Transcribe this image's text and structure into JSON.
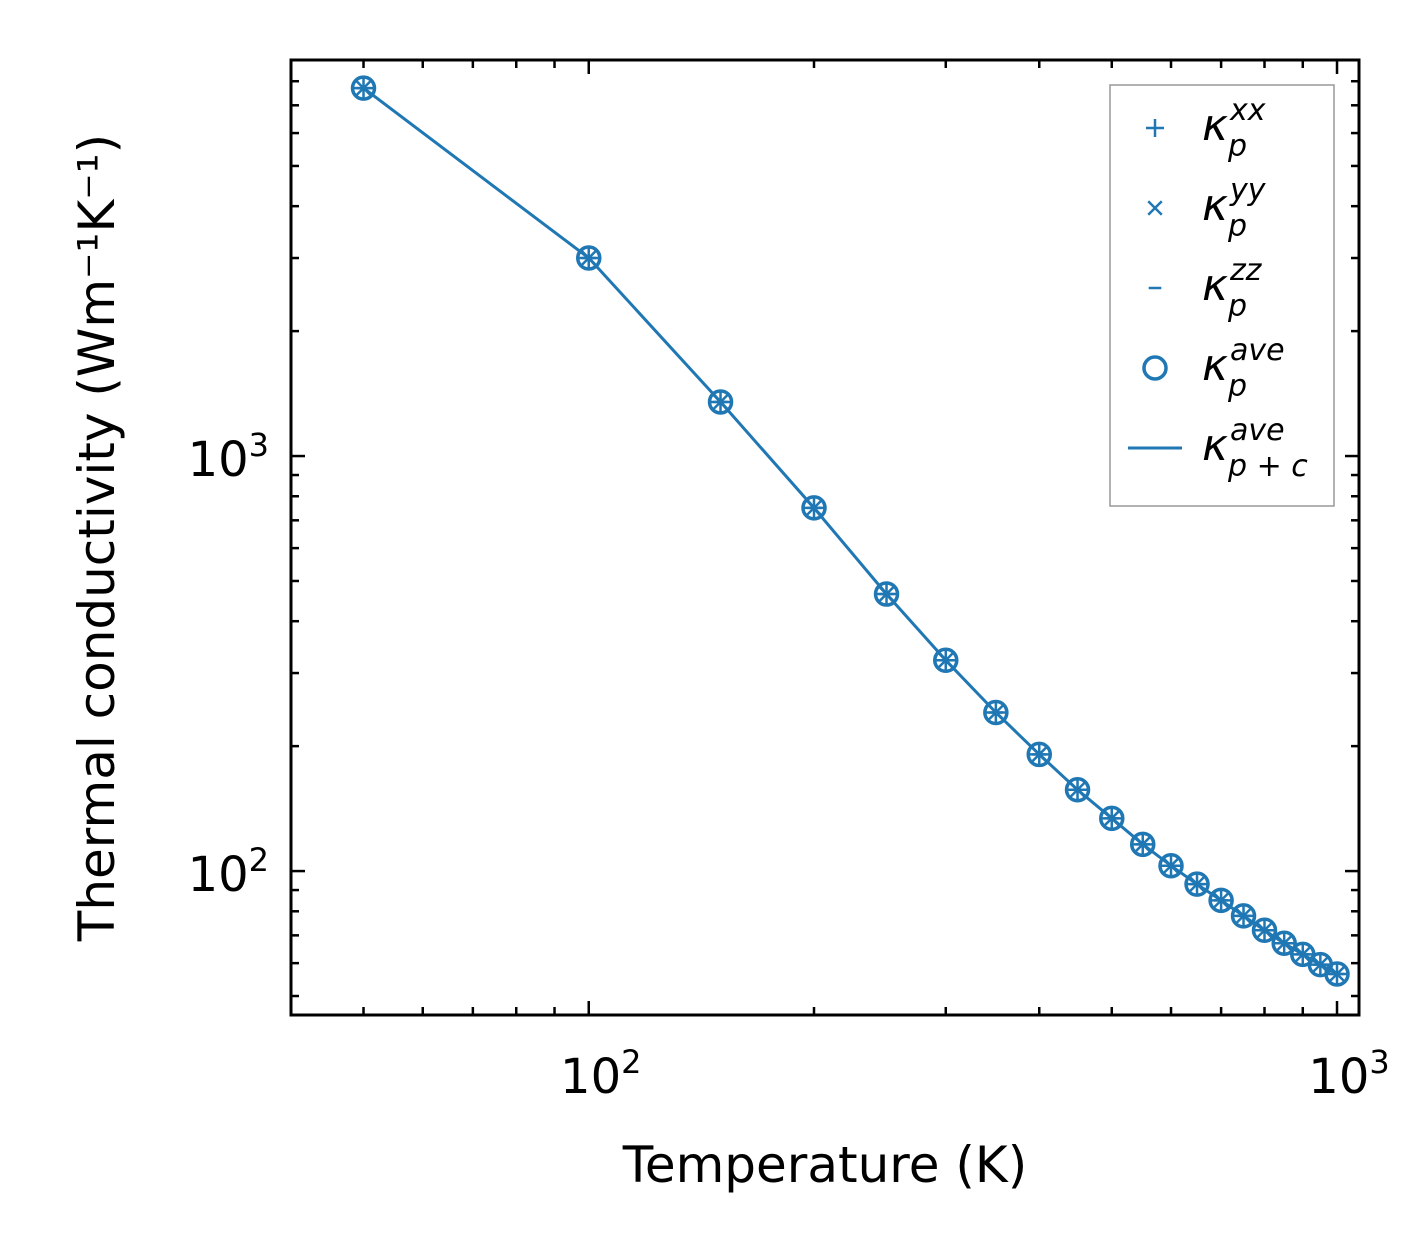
{
  "chart_data": {
    "type": "line",
    "xscale": "log",
    "yscale": "log",
    "xlim": [
      40,
      1070
    ],
    "ylim": [
      45,
      9000
    ],
    "xlabel": "Temperature (K)",
    "ylabel": "Thermal conductivity (Wm⁻¹K⁻¹)",
    "x_ticks": [
      {
        "value": 100,
        "base": "10",
        "exp": "2"
      },
      {
        "value": 1000,
        "base": "10",
        "exp": "3"
      }
    ],
    "y_ticks": [
      {
        "value": 100,
        "base": "10",
        "exp": "2"
      },
      {
        "value": 1000,
        "base": "10",
        "exp": "3"
      }
    ],
    "x": [
      50,
      100,
      150,
      200,
      250,
      300,
      350,
      400,
      450,
      500,
      550,
      600,
      650,
      700,
      750,
      800,
      850,
      900,
      950,
      1000
    ],
    "series": [
      {
        "name": "κ_p^xx",
        "marker": "plus",
        "values": [
          7700,
          3000,
          1350,
          750,
          465,
          322,
          241,
          191,
          157,
          134,
          116,
          103,
          93,
          85,
          78,
          72,
          67,
          63,
          59.5,
          56.5
        ]
      },
      {
        "name": "κ_p^yy",
        "marker": "x",
        "values": [
          7700,
          3000,
          1350,
          750,
          465,
          322,
          241,
          191,
          157,
          134,
          116,
          103,
          93,
          85,
          78,
          72,
          67,
          63,
          59.5,
          56.5
        ]
      },
      {
        "name": "κ_p^zz",
        "marker": "hline",
        "values": [
          7700,
          3000,
          1350,
          750,
          465,
          322,
          241,
          191,
          157,
          134,
          116,
          103,
          93,
          85,
          78,
          72,
          67,
          63,
          59.5,
          56.5
        ]
      },
      {
        "name": "κ_p^ave",
        "marker": "circle",
        "values": [
          7700,
          3000,
          1350,
          750,
          465,
          322,
          241,
          191,
          157,
          134,
          116,
          103,
          93,
          85,
          78,
          72,
          67,
          63,
          59.5,
          56.5
        ]
      },
      {
        "name": "κ_p+c^ave",
        "marker": "line",
        "values": [
          7700,
          3000,
          1350,
          750,
          465,
          322,
          241,
          191,
          157,
          134,
          116,
          103,
          93,
          85,
          78,
          72,
          67,
          63,
          59.5,
          56.5
        ]
      }
    ],
    "legend": {
      "position": "top-right",
      "entries": [
        {
          "symbol": "plus",
          "sym": "κ",
          "sub": "p",
          "sup": "xx"
        },
        {
          "symbol": "x",
          "sym": "κ",
          "sub": "p",
          "sup": "yy"
        },
        {
          "symbol": "hline",
          "sym": "κ",
          "sub": "p",
          "sup": "zz"
        },
        {
          "symbol": "circle",
          "sym": "κ",
          "sub": "p",
          "sup": "ave"
        },
        {
          "symbol": "line",
          "sym": "κ",
          "sub": "p + c",
          "sup": "ave"
        }
      ]
    },
    "color": "#1f77b4"
  }
}
